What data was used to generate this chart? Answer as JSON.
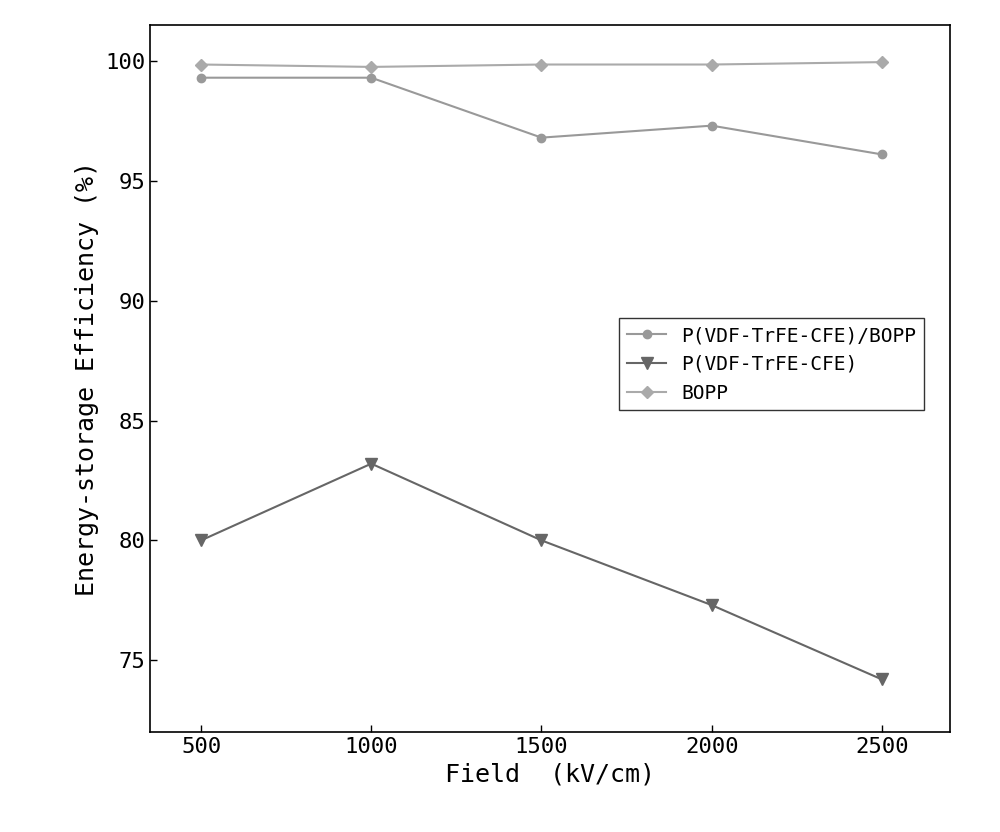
{
  "x": [
    500,
    1000,
    1500,
    2000,
    2500
  ],
  "series": [
    {
      "label": "P(VDF-TrFE-CFE)/BOPP",
      "y": [
        99.3,
        99.3,
        96.8,
        97.3,
        96.1
      ],
      "color": "#999999",
      "marker": "o",
      "markersize": 6,
      "linewidth": 1.5,
      "linestyle": "-"
    },
    {
      "label": "P(VDF-TrFE-CFE)",
      "y": [
        80.0,
        83.2,
        80.0,
        77.3,
        74.2
      ],
      "color": "#666666",
      "marker": "v",
      "markersize": 9,
      "linewidth": 1.5,
      "linestyle": "-"
    },
    {
      "label": "BOPP",
      "y": [
        99.85,
        99.75,
        99.85,
        99.85,
        99.95
      ],
      "color": "#aaaaaa",
      "marker": "D",
      "markersize": 6,
      "linewidth": 1.5,
      "linestyle": "-"
    }
  ],
  "xlabel": "Field  (kV/cm)",
  "ylabel": "Energy-storage Efficiency (%)",
  "xlim": [
    350,
    2700
  ],
  "ylim": [
    72,
    101.5
  ],
  "xticks": [
    500,
    1000,
    1500,
    2000,
    2500
  ],
  "yticks": [
    75,
    80,
    85,
    90,
    95,
    100
  ],
  "label_fontsize": 18,
  "tick_fontsize": 16,
  "legend_fontsize": 14,
  "background_color": "#ffffff",
  "font_family": "DejaVu Sans Mono"
}
